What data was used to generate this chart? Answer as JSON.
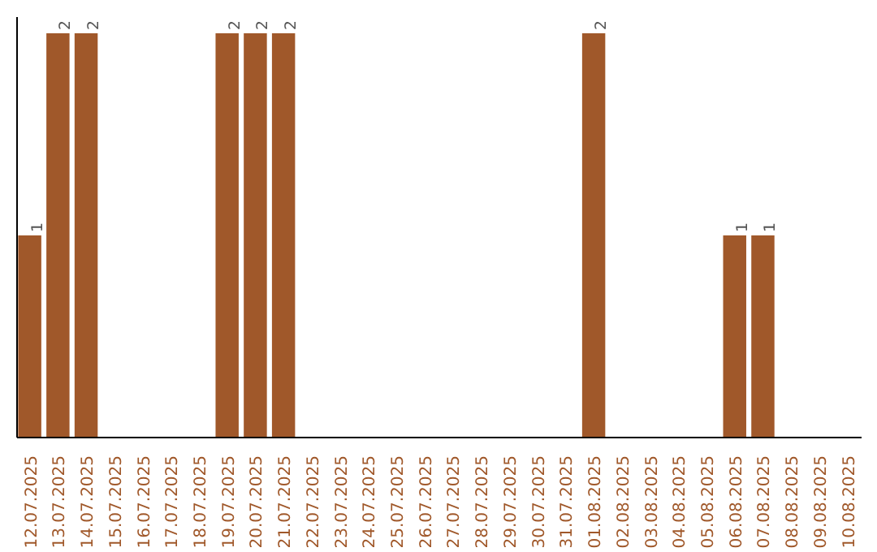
{
  "chart_data": {
    "type": "bar",
    "categories": [
      "12.07.2025",
      "13.07.2025",
      "14.07.2025",
      "15.07.2025",
      "16.07.2025",
      "17.07.2025",
      "18.07.2025",
      "19.07.2025",
      "20.07.2025",
      "21.07.2025",
      "22.07.2025",
      "23.07.2025",
      "24.07.2025",
      "25.07.2025",
      "26.07.2025",
      "27.07.2025",
      "28.07.2025",
      "29.07.2025",
      "30.07.2025",
      "31.07.2025",
      "01.08.2025",
      "02.08.2025",
      "03.08.2025",
      "04.08.2025",
      "05.08.2025",
      "06.08.2025",
      "07.08.2025",
      "08.08.2025",
      "09.08.2025",
      "10.08.2025"
    ],
    "values": [
      1,
      2,
      2,
      0,
      0,
      0,
      0,
      2,
      2,
      2,
      0,
      0,
      0,
      0,
      0,
      0,
      0,
      0,
      0,
      0,
      2,
      0,
      0,
      0,
      0,
      1,
      1,
      0,
      0,
      0
    ],
    "value_labels": [
      "1",
      "2",
      "2",
      null,
      null,
      null,
      null,
      "2",
      "2",
      "2",
      null,
      null,
      null,
      null,
      null,
      null,
      null,
      null,
      null,
      null,
      "2",
      null,
      null,
      null,
      null,
      "1",
      "1",
      null,
      null,
      null
    ],
    "color": "#a0582a",
    "ylim": [
      0,
      2.08
    ],
    "tick_labels": "x",
    "grid": false
  }
}
